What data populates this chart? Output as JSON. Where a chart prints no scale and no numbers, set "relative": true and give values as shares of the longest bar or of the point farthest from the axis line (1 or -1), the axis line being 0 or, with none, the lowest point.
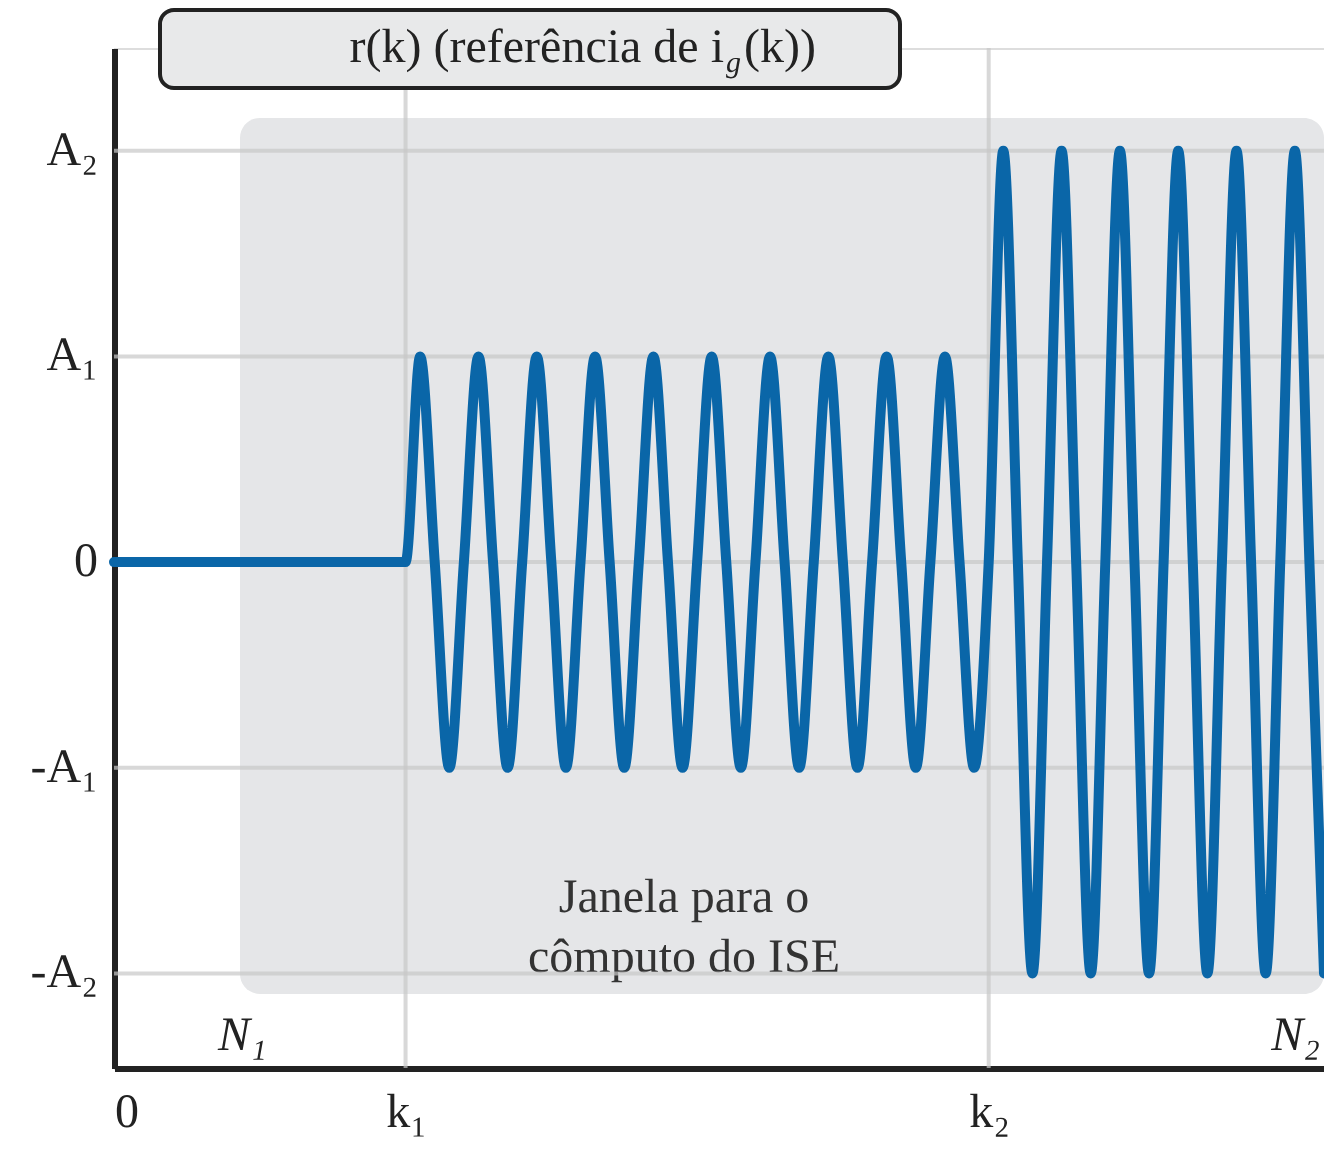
{
  "chart_data": {
    "type": "line",
    "title": "r(k)    (referência de i$_{g}$(k))",
    "relative": true,
    "categories": [
      "0",
      null,
      null,
      null,
      null,
      null,
      null,
      null,
      null,
      null,
      null,
      null,
      null,
      null,
      null,
      null,
      null,
      null,
      null,
      null,
      "k₁",
      null,
      null,
      null,
      null,
      null,
      null,
      null,
      null,
      null,
      null,
      null,
      null,
      null,
      null,
      null,
      null,
      null,
      null,
      null,
      null,
      null,
      null,
      null,
      null,
      null,
      null,
      null,
      null,
      null,
      null,
      null,
      null,
      null,
      null,
      null,
      null,
      null,
      null,
      null,
      "k₂",
      null,
      null,
      null,
      null,
      null,
      null,
      null,
      null,
      null,
      null,
      null,
      null,
      null,
      null,
      null,
      null,
      null,
      null,
      null,
      null,
      null,
      null,
      null
    ],
    "series": [
      {
        "color": "#0a66a8",
        "line_style": "solid",
        "marker": "none",
        "values": [
          0,
          0,
          0,
          0,
          0,
          0,
          0,
          0,
          0,
          0,
          0,
          0,
          0,
          0,
          0,
          0,
          0,
          0,
          0,
          0,
          0,
          0.5,
          0,
          -0.5,
          0,
          0.5,
          0,
          -0.5,
          0,
          0.5,
          0,
          -0.5,
          0,
          0.5,
          0,
          -0.5,
          0,
          0.5,
          0,
          -0.5,
          0,
          0.5,
          0,
          -0.5,
          0,
          0.5,
          0,
          -0.5,
          0,
          0.5,
          0,
          -0.5,
          0,
          0.5,
          0,
          -0.5,
          0,
          0.5,
          0,
          -0.5,
          0,
          1,
          0,
          -1,
          0,
          1,
          0,
          -1,
          0,
          1,
          0,
          -1,
          0,
          1,
          0,
          -1,
          0,
          1,
          0,
          -1,
          0,
          1,
          0,
          -1
        ]
      }
    ],
    "grid": "x",
    "ref_lines": [
      {
        "axis": "y",
        "value": 1,
        "label": "A₂",
        "color": "#c8c8c8"
      },
      {
        "axis": "y",
        "value": 0.5,
        "label": "A₁",
        "color": "#c8c8c8"
      },
      {
        "axis": "y",
        "value": 0,
        "label": "0",
        "color": "#c8c8c8"
      },
      {
        "axis": "y",
        "value": -0.5,
        "label": "-A₁",
        "color": "#c8c8c8"
      },
      {
        "axis": "y",
        "value": -1,
        "label": "-A₂",
        "color": "#c8c8c8"
      }
    ],
    "bands": [
      {
        "axis": "y",
        "from": -1.05,
        "to": 1.08,
        "label": "Janela para o\ncômputo do ISE",
        "color": "#e5e6e8"
      }
    ],
    "annotations": [
      "N₁",
      "N₂"
    ]
  }
}
